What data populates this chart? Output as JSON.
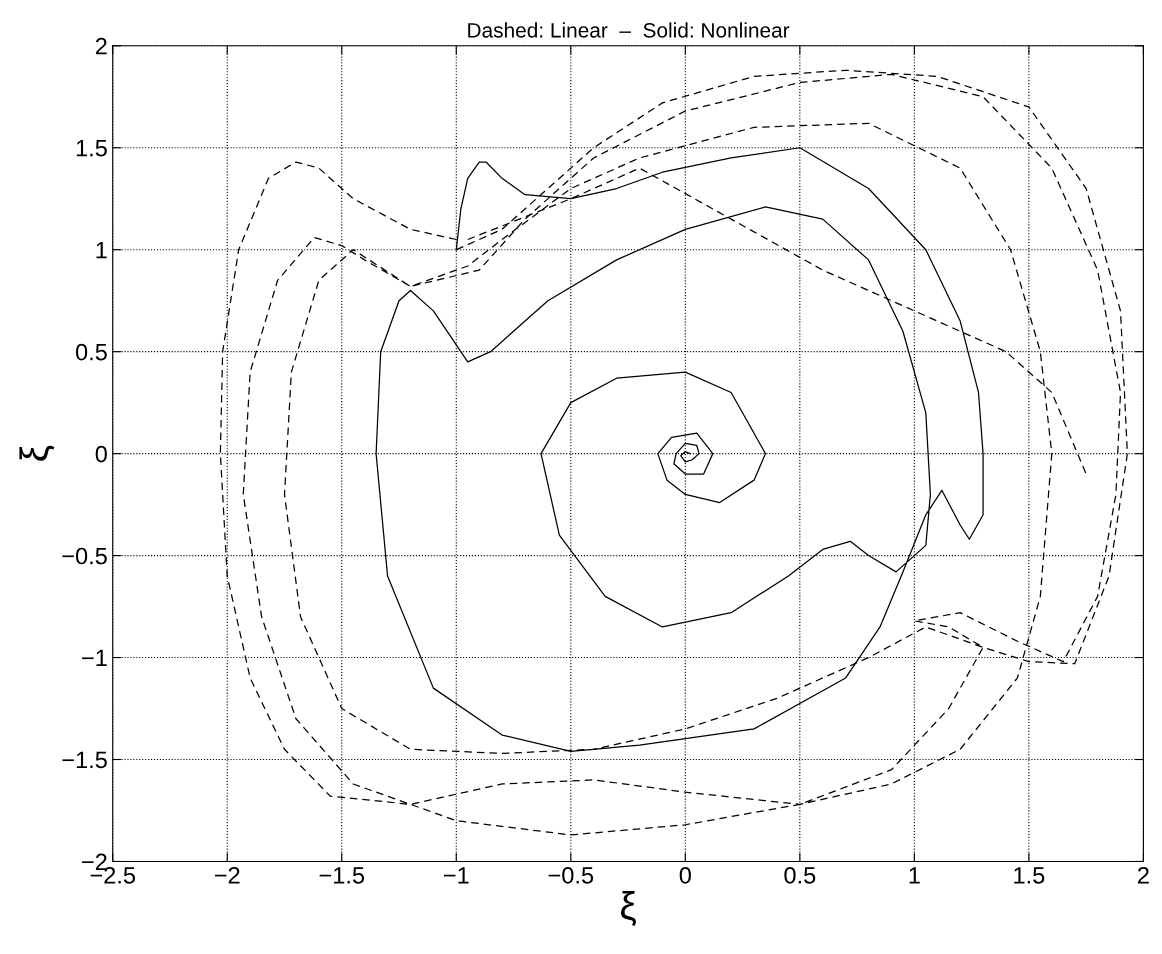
{
  "chart_data": {
    "type": "line",
    "title": "Dashed: Linear  –  Solid: Nonlinear",
    "xlabel": "ξ",
    "ylabel": "ξ",
    "xlim": [
      -2.5,
      2
    ],
    "ylim": [
      -2,
      2
    ],
    "xticks": [
      {
        "value": -2.5,
        "label": "−2.5"
      },
      {
        "value": -2,
        "label": "−2"
      },
      {
        "value": -1.5,
        "label": "−1.5"
      },
      {
        "value": -1,
        "label": "−1"
      },
      {
        "value": -0.5,
        "label": "−0.5"
      },
      0,
      0.5,
      1,
      1.5,
      2
    ],
    "yticks": [
      {
        "value": -2,
        "label": "−2"
      },
      {
        "value": -1.5,
        "label": "−1.5"
      },
      {
        "value": -1,
        "label": "−1"
      },
      {
        "value": -0.5,
        "label": "−0.5"
      },
      0,
      0.5,
      1,
      1.5,
      2
    ],
    "grid": true,
    "marker": "none",
    "series": [
      {
        "color": "#000000",
        "line_style": "solid",
        "x": [
          -1.0,
          -0.98,
          -0.95,
          -0.9,
          -0.87,
          -0.8,
          -0.7,
          -0.5,
          -0.3,
          -0.1,
          0.2,
          0.5,
          0.8,
          1.05,
          1.2,
          1.28,
          1.3,
          1.3,
          1.24,
          1.2,
          1.12,
          1.05,
          0.95,
          0.85,
          0.7,
          0.3,
          -0.2,
          -0.5,
          -0.8,
          -1.1,
          -1.3,
          -1.35,
          -1.33,
          -1.25,
          -1.2,
          -1.1,
          -0.95,
          -0.85,
          -0.6,
          -0.3,
          0,
          0.35,
          0.6,
          0.8,
          0.95,
          1.05,
          1.07,
          1.05,
          0.92,
          0.8,
          0.72,
          0.6,
          0.45,
          0.2,
          -0.1,
          -0.35,
          -0.55,
          -0.63,
          -0.5,
          -0.3,
          -0.2,
          0,
          0.2,
          0.35,
          0.3,
          0.15,
          0.0,
          -0.08,
          -0.12,
          -0.06,
          0.05,
          0.12,
          0.08,
          0.0,
          -0.05,
          -0.04,
          0.0,
          0.05,
          0.06,
          0.03,
          0.0,
          -0.02,
          0.0,
          0.02
        ],
        "values": [
          1.0,
          1.2,
          1.35,
          1.43,
          1.43,
          1.35,
          1.27,
          1.25,
          1.3,
          1.38,
          1.45,
          1.5,
          1.3,
          1.0,
          0.65,
          0.3,
          0.0,
          -0.3,
          -0.42,
          -0.35,
          -0.18,
          -0.3,
          -0.58,
          -0.85,
          -1.1,
          -1.35,
          -1.43,
          -1.46,
          -1.38,
          -1.15,
          -0.6,
          0.0,
          0.5,
          0.75,
          0.8,
          0.7,
          0.45,
          0.5,
          0.75,
          0.95,
          1.1,
          1.21,
          1.15,
          0.95,
          0.6,
          0.2,
          -0.2,
          -0.45,
          -0.58,
          -0.5,
          -0.43,
          -0.47,
          -0.6,
          -0.78,
          -0.85,
          -0.7,
          -0.4,
          0.0,
          0.25,
          0.37,
          0.38,
          0.4,
          0.3,
          0.0,
          -0.13,
          -0.24,
          -0.2,
          -0.13,
          0.0,
          0.08,
          0.1,
          0.0,
          -0.1,
          -0.1,
          -0.05,
          0.0,
          0.05,
          0.04,
          0.0,
          -0.03,
          -0.04,
          -0.01,
          0.01,
          0.0
        ]
      },
      {
        "color": "#000000",
        "line_style": "dashed",
        "x": [
          -1.0,
          -1.2,
          -1.45,
          -1.6,
          -1.7,
          -1.82,
          -1.95,
          -2.02,
          -2.03,
          -2.0,
          -1.9,
          -1.75,
          -1.55,
          -1.2,
          -0.8,
          -0.4,
          0,
          0.5,
          0.9,
          1.2,
          1.45,
          1.55,
          1.6,
          1.55,
          1.42,
          1.2,
          0.8,
          0.3,
          -0.2,
          -0.5,
          -0.8,
          -0.95,
          -1.2,
          -1.4,
          -1.5,
          -1.62,
          -1.78,
          -1.9,
          -1.93,
          -1.85,
          -1.7,
          -1.45,
          -1.0,
          -0.5,
          0,
          0.5,
          0.9,
          1.15,
          1.3,
          1.15,
          1.0,
          1.2,
          1.45,
          1.65,
          1.8,
          1.88,
          1.9,
          1.8,
          1.6,
          1.3,
          0.9,
          0.5,
          0.0,
          -0.4,
          -0.7,
          -0.9,
          -1.2,
          -1.45,
          -1.6,
          -1.72,
          -1.75,
          -1.68,
          -1.5,
          -1.2,
          -0.8,
          -0.4,
          0,
          0.4,
          0.8,
          1.05,
          1.3,
          1.5,
          1.7,
          1.85,
          1.93,
          1.9,
          1.75,
          1.5,
          1.1,
          0.7,
          0.3,
          -0.1,
          -0.4,
          -0.6,
          -0.8,
          -1.0
        ],
        "values": [
          1.05,
          1.1,
          1.25,
          1.4,
          1.43,
          1.35,
          1.0,
          0.5,
          0,
          -0.6,
          -1.1,
          -1.45,
          -1.68,
          -1.72,
          -1.62,
          -1.6,
          -1.66,
          -1.72,
          -1.62,
          -1.45,
          -1.1,
          -0.7,
          0,
          0.5,
          1.0,
          1.4,
          1.62,
          1.6,
          1.45,
          1.3,
          1.05,
          0.92,
          0.82,
          0.95,
          1.02,
          1.06,
          0.85,
          0.4,
          -0.2,
          -0.8,
          -1.3,
          -1.62,
          -1.8,
          -1.87,
          -1.82,
          -1.72,
          -1.55,
          -1.25,
          -0.95,
          -0.85,
          -0.82,
          -0.78,
          -0.92,
          -1.02,
          -0.7,
          -0.2,
          0.3,
          0.9,
          1.4,
          1.75,
          1.86,
          1.82,
          1.68,
          1.45,
          1.15,
          0.9,
          0.82,
          1.0,
          0.85,
          0.4,
          -0.2,
          -0.8,
          -1.25,
          -1.45,
          -1.47,
          -1.45,
          -1.35,
          -1.2,
          -1.0,
          -0.85,
          -0.95,
          -1.02,
          -1.03,
          -0.6,
          0,
          0.7,
          1.3,
          1.7,
          1.85,
          1.88,
          1.85,
          1.72,
          1.5,
          1.3,
          1.1,
          1.0
        ]
      },
      {
        "color": "#000000",
        "line_style": "dashed",
        "x": [
          -0.95,
          -0.5,
          -0.2,
          0.2,
          0.6,
          1.0,
          1.4,
          1.6,
          1.75
        ],
        "values": [
          1.05,
          1.25,
          1.4,
          1.15,
          0.9,
          0.7,
          0.5,
          0.3,
          -0.1
        ]
      }
    ]
  }
}
